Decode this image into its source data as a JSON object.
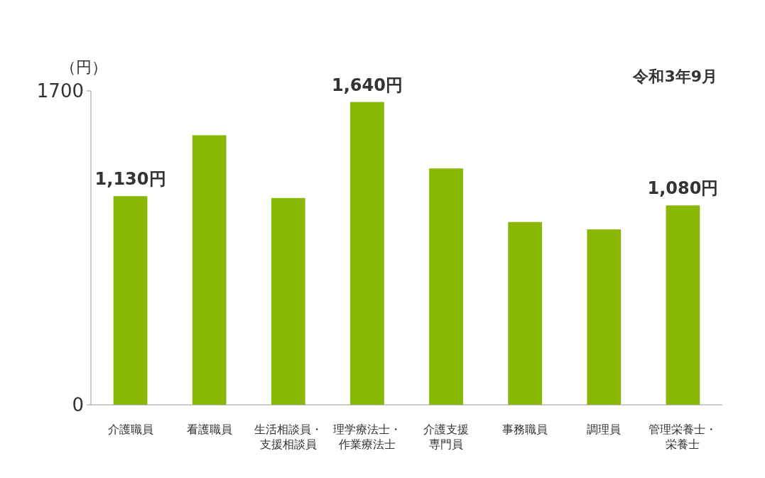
{
  "chart_data": {
    "type": "bar",
    "ylabel": "（円）",
    "annotations": [
      "令和3年9月"
    ],
    "categories": [
      "介護職員",
      "看護職員",
      "生活相談員・支援相談員",
      "理学療法士・作業療法士",
      "介護支援専門員",
      "事務職員",
      "調理員",
      "管理栄養士・栄養士"
    ],
    "values": [
      1130,
      1460,
      1120,
      1640,
      1280,
      990,
      950,
      1080
    ],
    "color": "#88b804",
    "value_labels": [
      "1,130円",
      null,
      null,
      "1,640円",
      null,
      null,
      null,
      "1,080円"
    ],
    "ylim": [
      0,
      1700
    ],
    "yticks": [
      0,
      1700
    ]
  }
}
